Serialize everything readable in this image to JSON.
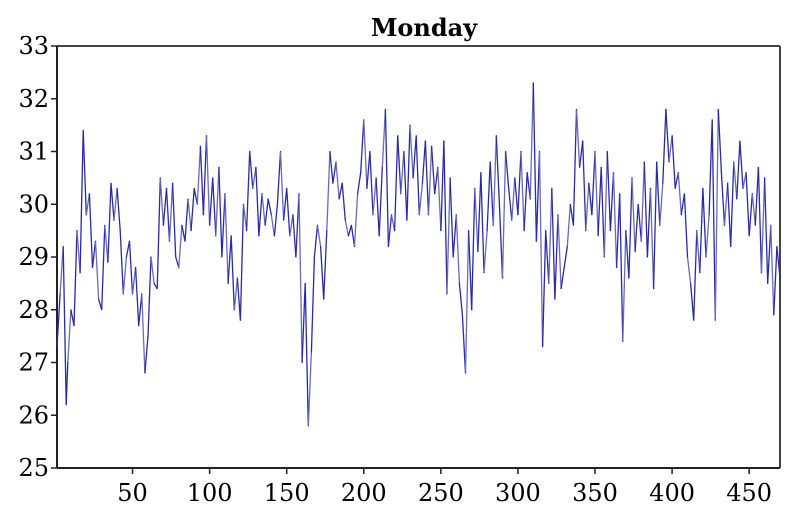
{
  "chart_data": {
    "type": "line",
    "title": "Monday",
    "xlabel": "",
    "ylabel": "",
    "xlim": [
      1,
      470
    ],
    "ylim": [
      25,
      33
    ],
    "x_ticks": [
      50,
      100,
      150,
      200,
      250,
      300,
      350,
      400,
      450
    ],
    "y_ticks": [
      25,
      26,
      27,
      28,
      29,
      30,
      31,
      32,
      33
    ],
    "grid": false,
    "legend": "none",
    "colors": {
      "line": "#2a2aa8",
      "line_light": "#6a6ab8",
      "axis": "#222222"
    },
    "series": [
      {
        "x": [
          1,
          3,
          5,
          7,
          8,
          10,
          12,
          14,
          16,
          18,
          20,
          22,
          24,
          26,
          28,
          30,
          32,
          34,
          36,
          38,
          40,
          42,
          44,
          46,
          48,
          50,
          52,
          54,
          56,
          58,
          60,
          62,
          64,
          66,
          68,
          70,
          72,
          74,
          76,
          78,
          80,
          82,
          84,
          86,
          88,
          90,
          92,
          94,
          96,
          98,
          100,
          102,
          104,
          106,
          108,
          110,
          112,
          114,
          116,
          118,
          120,
          122,
          124,
          126,
          128,
          130,
          132,
          134,
          136,
          138,
          140,
          142,
          144,
          146,
          148,
          150,
          152,
          154,
          156,
          158,
          160,
          162,
          164,
          166,
          168,
          170,
          172,
          174,
          176,
          178,
          180,
          182,
          184,
          186,
          188,
          190,
          192,
          194,
          196,
          198,
          200,
          202,
          204,
          206,
          208,
          210,
          212,
          214,
          216,
          218,
          220,
          222,
          224,
          226,
          228,
          230,
          232,
          234,
          236,
          238,
          240,
          242,
          244,
          246,
          248,
          250,
          252,
          254,
          256,
          258,
          260,
          262,
          264,
          266,
          268,
          270,
          272,
          274,
          276,
          278,
          280,
          282,
          284,
          286,
          288,
          290,
          292,
          294,
          296,
          298,
          300,
          302,
          304,
          306,
          308,
          310,
          312,
          314,
          316,
          318,
          320,
          322,
          324,
          326,
          328,
          330,
          332,
          334,
          336,
          338,
          340,
          342,
          344,
          346,
          348,
          350,
          352,
          354,
          356,
          358,
          360,
          362,
          364,
          366,
          368,
          370,
          372,
          374,
          376,
          378,
          380,
          382,
          384,
          386,
          388,
          390,
          392,
          394,
          396,
          398,
          400,
          402,
          404,
          406,
          408,
          410,
          412,
          414,
          416,
          418,
          420,
          422,
          424,
          426,
          428,
          430,
          432,
          434,
          436,
          438,
          440,
          442,
          444,
          446,
          448,
          450,
          452,
          454,
          456,
          458,
          460,
          462,
          464,
          466,
          468,
          470
        ],
        "values": [
          27.3,
          28.3,
          29.2,
          26.2,
          27.0,
          28.0,
          27.7,
          29.5,
          28.7,
          31.4,
          29.8,
          30.2,
          28.8,
          29.3,
          28.2,
          28.0,
          29.6,
          28.9,
          30.4,
          29.7,
          30.3,
          29.5,
          28.3,
          29.0,
          29.3,
          28.3,
          28.8,
          27.7,
          28.3,
          26.8,
          27.5,
          29.0,
          28.5,
          28.4,
          30.5,
          29.6,
          30.3,
          29.3,
          30.4,
          29.0,
          28.8,
          29.6,
          29.3,
          30.1,
          29.5,
          30.3,
          30.0,
          31.1,
          29.8,
          31.3,
          29.6,
          30.5,
          29.4,
          30.7,
          29.0,
          30.2,
          28.5,
          29.4,
          28.0,
          28.6,
          27.8,
          30.0,
          29.5,
          31.0,
          30.3,
          30.7,
          29.4,
          30.2,
          29.6,
          30.1,
          29.8,
          29.4,
          30.0,
          31.0,
          29.7,
          30.3,
          29.4,
          29.8,
          29.0,
          30.2,
          27.0,
          28.5,
          25.8,
          27.2,
          29.0,
          29.6,
          29.2,
          28.2,
          29.5,
          31.0,
          30.4,
          30.8,
          30.1,
          30.4,
          29.7,
          29.4,
          29.6,
          29.2,
          30.2,
          30.6,
          31.6,
          30.3,
          31.0,
          29.8,
          30.5,
          29.4,
          30.7,
          31.8,
          29.2,
          29.8,
          29.5,
          31.3,
          30.2,
          31.0,
          29.7,
          31.5,
          30.5,
          31.3,
          29.8,
          30.4,
          31.2,
          29.8,
          31.1,
          30.2,
          30.7,
          29.5,
          31.2,
          28.3,
          30.5,
          29.0,
          29.8,
          28.5,
          27.9,
          26.8,
          29.5,
          28.0,
          30.3,
          29.1,
          30.6,
          28.7,
          29.5,
          30.8,
          29.6,
          31.3,
          30.0,
          28.6,
          31.0,
          30.3,
          29.7,
          30.5,
          29.8,
          31.0,
          29.5,
          30.6,
          30.1,
          32.3,
          29.3,
          31.0,
          27.3,
          29.5,
          28.5,
          30.3,
          28.2,
          29.8,
          28.4,
          28.8,
          29.2,
          30.0,
          29.6,
          31.8,
          30.7,
          31.2,
          29.5,
          30.4,
          29.8,
          31.0,
          29.4,
          30.7,
          29.0,
          31.0,
          29.5,
          30.6,
          28.8,
          30.2,
          27.4,
          29.5,
          28.6,
          30.5,
          29.1,
          30.0,
          29.3,
          30.8,
          29.0,
          30.3,
          28.4,
          30.8,
          29.6,
          30.4,
          31.8,
          30.8,
          31.3,
          30.3,
          30.6,
          29.8,
          30.2,
          29.0,
          28.5,
          27.8,
          29.5,
          28.7,
          30.3,
          29.0,
          29.8,
          31.6,
          27.8,
          31.8,
          30.6,
          29.6,
          30.4,
          29.2,
          30.8,
          30.1,
          31.2,
          30.3,
          30.6,
          29.4,
          30.2,
          29.6,
          30.7,
          28.7,
          30.5,
          28.5,
          29.6,
          27.9,
          29.2,
          28.6
        ]
      }
    ]
  }
}
